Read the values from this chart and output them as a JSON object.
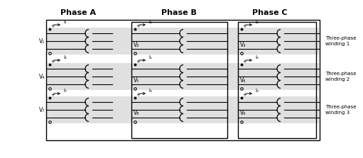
{
  "title_phase_a": "Phase A",
  "title_phase_b": "Phase B",
  "title_phase_c": "Phase C",
  "label_winding1": "Three-phase\nwinding 1",
  "label_winding2": "Three-phase\nwinding 2",
  "label_winding3": "Three-phase\nwinding 3",
  "bg_color": "#ffffff",
  "band_color": "#e0e0e0",
  "V_labels_A": [
    "V₁",
    "V₄",
    "V₇"
  ],
  "V_labels_B": [
    "V₂",
    "V₅",
    "V₈"
  ],
  "V_labels_C": [
    "V₃",
    "V₆",
    "V₉"
  ],
  "I_labels_A": [
    "I₁",
    "I₄",
    "I₇"
  ],
  "I_labels_B": [
    "I₂",
    "I₅",
    "I₈"
  ],
  "I_labels_C": [
    "I₃",
    "I₆",
    "I₉"
  ]
}
